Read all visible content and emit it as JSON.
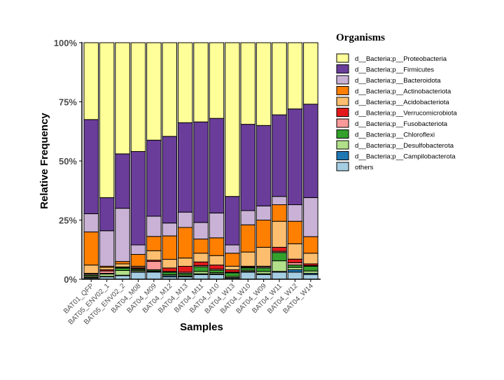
{
  "chart_data": {
    "type": "bar",
    "stacked": "percent",
    "xlabel": "Samples",
    "ylabel": "Relative  Frequency",
    "legend_title": "Organisms",
    "legend_position": "right",
    "grid": false,
    "ylim": [
      0,
      100
    ],
    "y_ticks": [
      "0%",
      "25%",
      "50%",
      "75%",
      "100%"
    ],
    "y_tick_values": [
      0,
      25,
      50,
      75,
      100
    ],
    "categories": [
      "BAT01_QFP",
      "BAT05_ENV02_1",
      "BAT05_ENV02_2",
      "BAT04_M08",
      "BAT04_M09",
      "BAT04_M12",
      "BAT04_M13",
      "BAT04_M11",
      "BAT04_M10",
      "BAT04_W13",
      "BAT04_W10",
      "BAT04_W09",
      "BAT04_W11",
      "BAT04_W12",
      "BAT04_W14"
    ],
    "series": [
      {
        "name": "others",
        "color": "#a6cee3",
        "values": [
          0.5,
          1.0,
          1.5,
          3.0,
          3.0,
          1.0,
          1.0,
          2.0,
          2.0,
          0.5,
          3.0,
          2.0,
          3.0,
          3.0,
          2.0
        ]
      },
      {
        "name": "d__Bacteria;p__Campilobacterota",
        "color": "#1f78b4",
        "values": [
          0.3,
          0.2,
          0.2,
          0.2,
          0.2,
          0.5,
          0.3,
          0.3,
          0.3,
          0.2,
          0.3,
          0.3,
          0.3,
          1.0,
          0.5
        ]
      },
      {
        "name": "d__Bacteria;p__Desulfobacterota",
        "color": "#b2df8a",
        "values": [
          0.5,
          1.0,
          2.0,
          0.5,
          0.3,
          0.5,
          0.5,
          1.0,
          0.5,
          0.5,
          0.5,
          1.0,
          4.5,
          1.0,
          1.0
        ]
      },
      {
        "name": "d__Bacteria;p__Chloroflexi",
        "color": "#33a02c",
        "values": [
          0.5,
          0.3,
          1.0,
          0.5,
          0.5,
          1.0,
          0.7,
          2.0,
          1.0,
          1.5,
          1.0,
          1.5,
          3.5,
          1.0,
          2.0
        ]
      },
      {
        "name": "d__Bacteria;p__Fusobacteriota",
        "color": "#fb9a99",
        "values": [
          0.5,
          1.0,
          0.3,
          0.3,
          3.5,
          0.3,
          0.5,
          0.5,
          0.5,
          0.3,
          0.3,
          0.5,
          0.5,
          1.0,
          0.3
        ]
      },
      {
        "name": "d__Bacteria;p__Verrucomicrobiota",
        "color": "#e31a1c",
        "values": [
          0.2,
          0.5,
          0.2,
          0.5,
          0.5,
          1.5,
          2.5,
          1.5,
          1.7,
          1.0,
          0.4,
          0.2,
          1.7,
          1.5,
          0.7
        ]
      },
      {
        "name": "d__Bacteria;p__Acidobacteriota",
        "color": "#fdbf6f",
        "values": [
          3.5,
          1.0,
          1.3,
          0.5,
          4.0,
          3.7,
          3.5,
          3.7,
          4.0,
          1.5,
          6.0,
          8.0,
          11.0,
          6.5,
          4.5
        ]
      },
      {
        "name": "d__Bacteria;p__Actinobacteriota",
        "color": "#ff7f00",
        "values": [
          14.0,
          0.5,
          1.0,
          5.0,
          6.0,
          10.0,
          13.0,
          6.0,
          7.5,
          5.5,
          11.5,
          11.5,
          7.0,
          9.5,
          7.0
        ]
      },
      {
        "name": "d__Bacteria;p__Bacteroidota",
        "color": "#cab2d6",
        "values": [
          7.7,
          15.0,
          22.5,
          4.0,
          8.5,
          5.5,
          6.5,
          7.0,
          10.5,
          3.5,
          6.0,
          6.0,
          3.5,
          7.0,
          16.5
        ]
      },
      {
        "name": "d__Bacteria;p__Firmicutes",
        "color": "#6a3d9a",
        "values": [
          39.8,
          14.0,
          23.0,
          39.5,
          32.0,
          37.0,
          38.0,
          42.5,
          40.0,
          20.5,
          36.5,
          34.0,
          34.5,
          40.5,
          39.5
        ]
      },
      {
        "name": "d__Bacteria;p__Proteobacteria",
        "color": "#ffff99",
        "values": [
          32.5,
          65.5,
          47.0,
          46.0,
          41.0,
          40.0,
          34.0,
          33.5,
          32.0,
          65.0,
          34.5,
          35.0,
          30.5,
          28.0,
          26.0
        ]
      }
    ],
    "legend_order": [
      "d__Bacteria;p__Proteobacteria",
      "d__Bacteria;p__Firmicutes",
      "d__Bacteria;p__Bacteroidota",
      "d__Bacteria;p__Actinobacteriota",
      "d__Bacteria;p__Acidobacteriota",
      "d__Bacteria;p__Verrucomicrobiota",
      "d__Bacteria;p__Fusobacteriota",
      "d__Bacteria;p__Chloroflexi",
      "d__Bacteria;p__Desulfobacterota",
      "d__Bacteria;p__Campilobacterota",
      "others"
    ]
  }
}
